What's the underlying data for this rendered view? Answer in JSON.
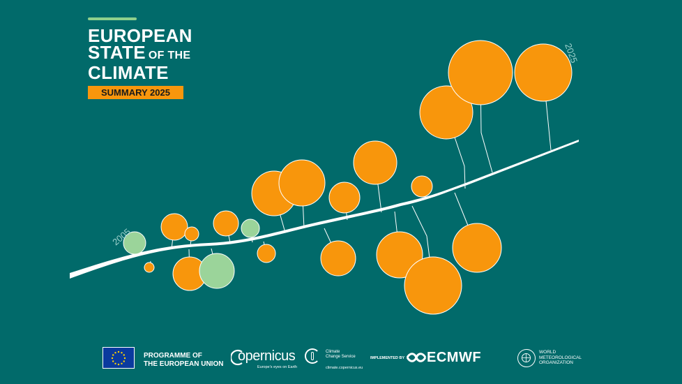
{
  "title": {
    "line1": "EUROPEAN",
    "line2_main": "STATE",
    "line2_small": "OF THE",
    "line3": "CLIMATE",
    "badge": "SUMMARY 2025"
  },
  "timeline": {
    "start_label": "2005",
    "end_label": "2025"
  },
  "colors": {
    "background": "#016A6A",
    "warm": "#F8960C",
    "cool": "#9BD49A",
    "accent_bar": "#8FD08C"
  },
  "footer": {
    "eu_line1": "PROGRAMME OF",
    "eu_line2": "THE EUROPEAN UNION",
    "copernicus": "opernicus",
    "copernicus_tagline": "Europe's eyes on Earth",
    "c3s_line1": "Climate",
    "c3s_line2": "Change Service",
    "c3s_url": "climate.copernicus.eu",
    "implemented_by": "IMPLEMENTED BY",
    "ecmwf": "ECMWF",
    "wmo_line1": "WORLD",
    "wmo_line2": "METEOROLOGICAL",
    "wmo_line3": "ORGANIZATION"
  }
}
